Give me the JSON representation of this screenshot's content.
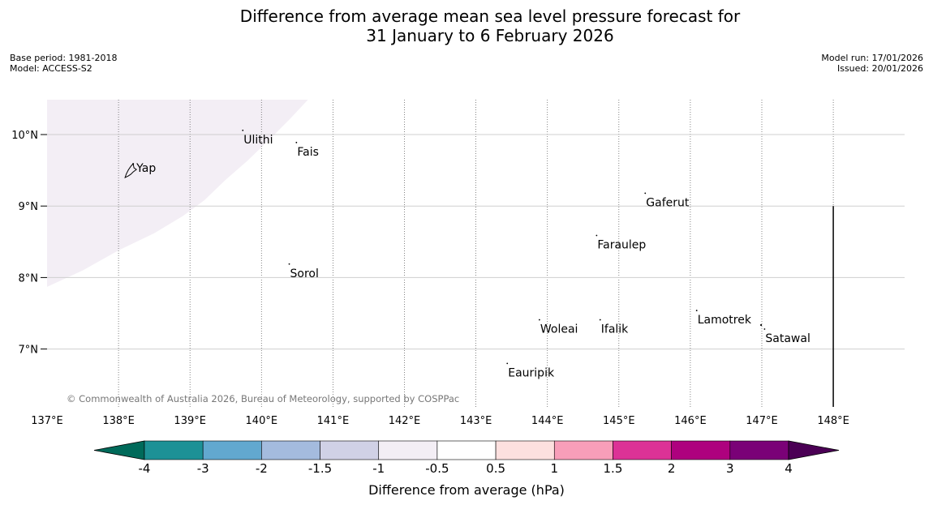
{
  "title_line1": "Difference from average mean sea level pressure forecast for",
  "title_line2": "31 January to 6 February 2026",
  "meta_left": {
    "base_period": "Base period: 1981-2018",
    "model": "Model: ACCESS-S2"
  },
  "meta_right": {
    "model_run": "Model run: 17/01/2026",
    "issued": "Issued: 20/01/2026"
  },
  "map": {
    "lon_range": [
      137,
      149
    ],
    "lat_range": [
      6.2,
      10.5
    ],
    "lon_ticks": [
      {
        "value": 137,
        "label": "137°E"
      },
      {
        "value": 138,
        "label": "138°E"
      },
      {
        "value": 139,
        "label": "139°E"
      },
      {
        "value": 140,
        "label": "140°E"
      },
      {
        "value": 141,
        "label": "141°E"
      },
      {
        "value": 142,
        "label": "142°E"
      },
      {
        "value": 143,
        "label": "143°E"
      },
      {
        "value": 144,
        "label": "144°E"
      },
      {
        "value": 145,
        "label": "145°E"
      },
      {
        "value": 146,
        "label": "146°E"
      },
      {
        "value": 147,
        "label": "147°E"
      },
      {
        "value": 148,
        "label": "148°E"
      }
    ],
    "lat_ticks": [
      {
        "value": 10,
        "label": "10°N"
      },
      {
        "value": 9,
        "label": "9°N"
      },
      {
        "value": 8,
        "label": "8°N"
      },
      {
        "value": 7,
        "label": "7°N"
      }
    ],
    "places": [
      {
        "name": "Yap",
        "lon": 138.25,
        "lat": 9.5
      },
      {
        "name": "Ulithi",
        "lon": 139.75,
        "lat": 9.9
      },
      {
        "name": "Fais",
        "lon": 140.5,
        "lat": 9.73
      },
      {
        "name": "Gaferut",
        "lon": 145.38,
        "lat": 9.02
      },
      {
        "name": "Faraulep",
        "lon": 144.7,
        "lat": 8.43
      },
      {
        "name": "Sorol",
        "lon": 140.4,
        "lat": 8.03
      },
      {
        "name": "Lamotrek",
        "lon": 146.1,
        "lat": 7.38
      },
      {
        "name": "Woleai",
        "lon": 143.9,
        "lat": 7.25
      },
      {
        "name": "Ifalik",
        "lon": 144.75,
        "lat": 7.25
      },
      {
        "name": "Satawal",
        "lon": 147.05,
        "lat": 7.12
      },
      {
        "name": "Eauripik",
        "lon": 143.45,
        "lat": 6.64
      }
    ],
    "shaded_region": {
      "category": "-1 to -0.5",
      "color": "#f3eef5",
      "boundary": [
        [
          137,
          7.87
        ],
        [
          137.5,
          8.1
        ],
        [
          138.0,
          8.38
        ],
        [
          138.5,
          8.62
        ],
        [
          138.9,
          8.86
        ],
        [
          139.2,
          9.08
        ],
        [
          139.5,
          9.37
        ],
        [
          139.8,
          9.63
        ],
        [
          140.1,
          9.92
        ],
        [
          140.4,
          10.22
        ],
        [
          140.65,
          10.5
        ],
        [
          137,
          10.5
        ]
      ]
    },
    "boundary_line": {
      "lon": 148,
      "lat_from": 6.2,
      "lat_to": 9.0
    },
    "copyright": "© Commonwealth of Australia 2026, Bureau of Meteorology, supported by COSPPac"
  },
  "colorbar": {
    "title": "Difference from average (hPa)",
    "labels": [
      "-4",
      "-3",
      "-2",
      "-1.5",
      "-1",
      "-0.5",
      "0.5",
      "1",
      "1.5",
      "2",
      "3",
      "4"
    ],
    "low_extend_color": "#006a5a",
    "high_extend_color": "#4b0055",
    "colors": [
      "#1d9196",
      "#62a8cf",
      "#a4bbde",
      "#d0d1e6",
      "#f3eef5",
      "#ffffff",
      "#fde0df",
      "#f89eb9",
      "#dc3296",
      "#ae017e",
      "#7a0177"
    ]
  }
}
